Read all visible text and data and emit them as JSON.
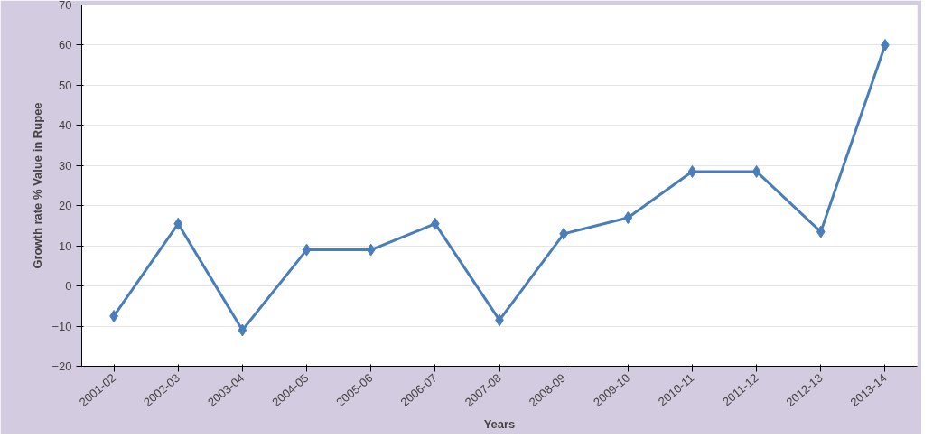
{
  "chart_data": {
    "type": "line",
    "xlabel": "Years",
    "ylabel": "Growth rate % Value in Rupee",
    "categories": [
      "2001-02",
      "2002-03",
      "2003-04",
      "2004-05",
      "2005-06",
      "2006-07",
      "2007-08",
      "2008-09",
      "2009-10",
      "2010-11",
      "2011-12",
      "2012-13",
      "2013-14"
    ],
    "series": [
      {
        "color": "#4a7ebb",
        "values": [
          -7.5,
          15.5,
          -11,
          9,
          9,
          15.5,
          -8.5,
          13,
          17,
          28.5,
          28.5,
          13.5,
          60
        ]
      }
    ],
    "ylim": [
      -20,
      70
    ],
    "yticks": [
      -20,
      -10,
      0,
      10,
      20,
      30,
      40,
      50,
      60,
      70
    ],
    "grid": "y",
    "marker": "diamond",
    "line_style": "solid"
  }
}
